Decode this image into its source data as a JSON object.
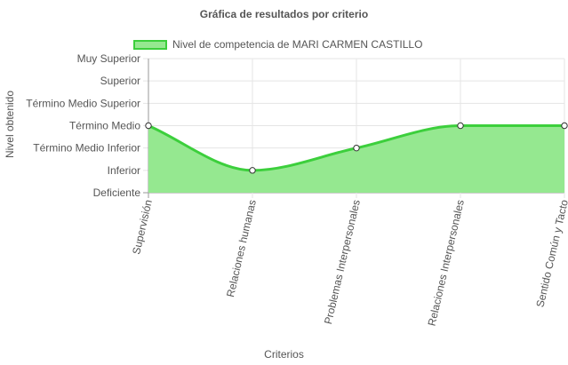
{
  "chart_data": {
    "type": "area",
    "title": "Gráfica de resultados por criterio",
    "xlabel": "Criterios",
    "ylabel": "Nivel obtenido",
    "categories": [
      "Supervisión",
      "Relaciones humanas",
      "Problemas Interpersonales",
      "Relaciones Interpersonales",
      "Sentido Común y Tacto"
    ],
    "y_levels": [
      "Deficiente",
      "Inferior",
      "Término Medio Inferior",
      "Término Medio",
      "Término Medio Superior",
      "Superior",
      "Muy Superior"
    ],
    "series": [
      {
        "name": "Nivel de competencia de MARI CARMEN CASTILLO",
        "values": [
          3,
          1,
          2,
          3,
          3
        ]
      }
    ],
    "ylim": [
      0,
      6
    ],
    "grid": true,
    "legend_position": "top",
    "colors": {
      "fill": "#95e890",
      "line": "#3ccf3c",
      "point_fill": "#ffffff",
      "point_stroke": "#333333",
      "grid": "#e5e5e5"
    }
  }
}
